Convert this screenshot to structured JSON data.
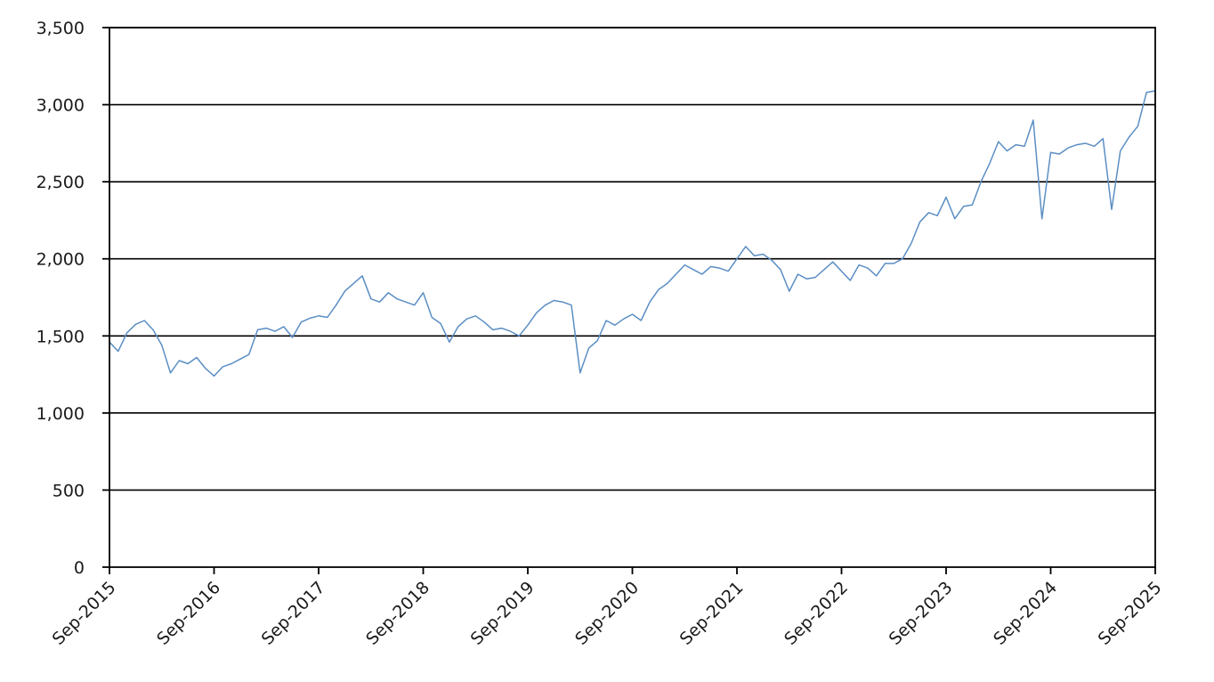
{
  "chart_data": {
    "type": "line",
    "title": "",
    "xlabel": "",
    "ylabel": "",
    "ylim": [
      0,
      3500
    ],
    "y_ticks": [
      0,
      500,
      1000,
      1500,
      2000,
      2500,
      3000,
      3500
    ],
    "y_tick_labels": [
      "0",
      "500",
      "1,000",
      "1,500",
      "2,000",
      "2,500",
      "3,000",
      "3,500"
    ],
    "x_ticks": [
      "2015-09",
      "2016-09",
      "2017-09",
      "2018-09",
      "2019-09",
      "2020-09",
      "2021-09",
      "2022-09",
      "2023-09",
      "2024-09",
      "2025-09"
    ],
    "x_tick_labels": [
      "Sep-2015",
      "Sep-2016",
      "Sep-2017",
      "Sep-2018",
      "Sep-2019",
      "Sep-2020",
      "Sep-2021",
      "Sep-2022",
      "Sep-2023",
      "Sep-2024",
      "Sep-2025"
    ],
    "grid": true,
    "series": [
      {
        "color": "#5b8ec4",
        "points": [
          [
            "2015-09",
            1460
          ],
          [
            "2015-10",
            1400
          ],
          [
            "2015-11",
            1520
          ],
          [
            "2015-12",
            1575
          ],
          [
            "2016-01",
            1600
          ],
          [
            "2016-02",
            1540
          ],
          [
            "2016-03",
            1440
          ],
          [
            "2016-04",
            1260
          ],
          [
            "2016-05",
            1340
          ],
          [
            "2016-06",
            1320
          ],
          [
            "2016-07",
            1360
          ],
          [
            "2016-08",
            1290
          ],
          [
            "2016-09",
            1240
          ],
          [
            "2016-10",
            1300
          ],
          [
            "2016-11",
            1320
          ],
          [
            "2016-12",
            1350
          ],
          [
            "2017-01",
            1380
          ],
          [
            "2017-02",
            1540
          ],
          [
            "2017-03",
            1550
          ],
          [
            "2017-04",
            1530
          ],
          [
            "2017-05",
            1560
          ],
          [
            "2017-06",
            1490
          ],
          [
            "2017-07",
            1590
          ],
          [
            "2017-08",
            1615
          ],
          [
            "2017-09",
            1630
          ],
          [
            "2017-10",
            1620
          ],
          [
            "2017-11",
            1700
          ],
          [
            "2017-12",
            1790
          ],
          [
            "2018-01",
            1840
          ],
          [
            "2018-02",
            1890
          ],
          [
            "2018-03",
            1740
          ],
          [
            "2018-04",
            1720
          ],
          [
            "2018-05",
            1780
          ],
          [
            "2018-06",
            1740
          ],
          [
            "2018-07",
            1720
          ],
          [
            "2018-08",
            1700
          ],
          [
            "2018-09",
            1780
          ],
          [
            "2018-10",
            1620
          ],
          [
            "2018-11",
            1580
          ],
          [
            "2018-12",
            1460
          ],
          [
            "2019-01",
            1560
          ],
          [
            "2019-02",
            1610
          ],
          [
            "2019-03",
            1630
          ],
          [
            "2019-04",
            1590
          ],
          [
            "2019-05",
            1540
          ],
          [
            "2019-06",
            1550
          ],
          [
            "2019-07",
            1530
          ],
          [
            "2019-08",
            1500
          ],
          [
            "2019-09",
            1570
          ],
          [
            "2019-10",
            1650
          ],
          [
            "2019-11",
            1700
          ],
          [
            "2019-12",
            1730
          ],
          [
            "2020-01",
            1720
          ],
          [
            "2020-02",
            1700
          ],
          [
            "2020-03",
            1260
          ],
          [
            "2020-04",
            1420
          ],
          [
            "2020-05",
            1470
          ],
          [
            "2020-06",
            1600
          ],
          [
            "2020-07",
            1570
          ],
          [
            "2020-08",
            1610
          ],
          [
            "2020-09",
            1640
          ],
          [
            "2020-10",
            1600
          ],
          [
            "2020-11",
            1720
          ],
          [
            "2020-12",
            1800
          ],
          [
            "2021-01",
            1840
          ],
          [
            "2021-02",
            1900
          ],
          [
            "2021-03",
            1960
          ],
          [
            "2021-04",
            1930
          ],
          [
            "2021-05",
            1900
          ],
          [
            "2021-06",
            1950
          ],
          [
            "2021-07",
            1940
          ],
          [
            "2021-08",
            1920
          ],
          [
            "2021-09",
            2000
          ],
          [
            "2021-10",
            2080
          ],
          [
            "2021-11",
            2020
          ],
          [
            "2021-12",
            2030
          ],
          [
            "2022-01",
            1990
          ],
          [
            "2022-02",
            1930
          ],
          [
            "2022-03",
            1790
          ],
          [
            "2022-04",
            1900
          ],
          [
            "2022-05",
            1870
          ],
          [
            "2022-06",
            1880
          ],
          [
            "2022-07",
            1930
          ],
          [
            "2022-08",
            1980
          ],
          [
            "2022-09",
            1920
          ],
          [
            "2022-10",
            1860
          ],
          [
            "2022-11",
            1960
          ],
          [
            "2022-12",
            1940
          ],
          [
            "2023-01",
            1890
          ],
          [
            "2023-02",
            1970
          ],
          [
            "2023-03",
            1970
          ],
          [
            "2023-04",
            2000
          ],
          [
            "2023-05",
            2100
          ],
          [
            "2023-06",
            2240
          ],
          [
            "2023-07",
            2300
          ],
          [
            "2023-08",
            2280
          ],
          [
            "2023-09",
            2400
          ],
          [
            "2023-10",
            2260
          ],
          [
            "2023-11",
            2340
          ],
          [
            "2023-12",
            2350
          ],
          [
            "2024-01",
            2500
          ],
          [
            "2024-02",
            2620
          ],
          [
            "2024-03",
            2760
          ],
          [
            "2024-04",
            2700
          ],
          [
            "2024-05",
            2740
          ],
          [
            "2024-06",
            2730
          ],
          [
            "2024-07",
            2900
          ],
          [
            "2024-08",
            2260
          ],
          [
            "2024-09",
            2690
          ],
          [
            "2024-10",
            2680
          ],
          [
            "2024-11",
            2720
          ],
          [
            "2024-12",
            2740
          ],
          [
            "2025-01",
            2750
          ],
          [
            "2025-02",
            2730
          ],
          [
            "2025-03",
            2780
          ],
          [
            "2025-04",
            2320
          ],
          [
            "2025-05",
            2700
          ],
          [
            "2025-06",
            2790
          ],
          [
            "2025-07",
            2860
          ],
          [
            "2025-08",
            3080
          ],
          [
            "2025-09",
            3090
          ]
        ]
      }
    ]
  }
}
